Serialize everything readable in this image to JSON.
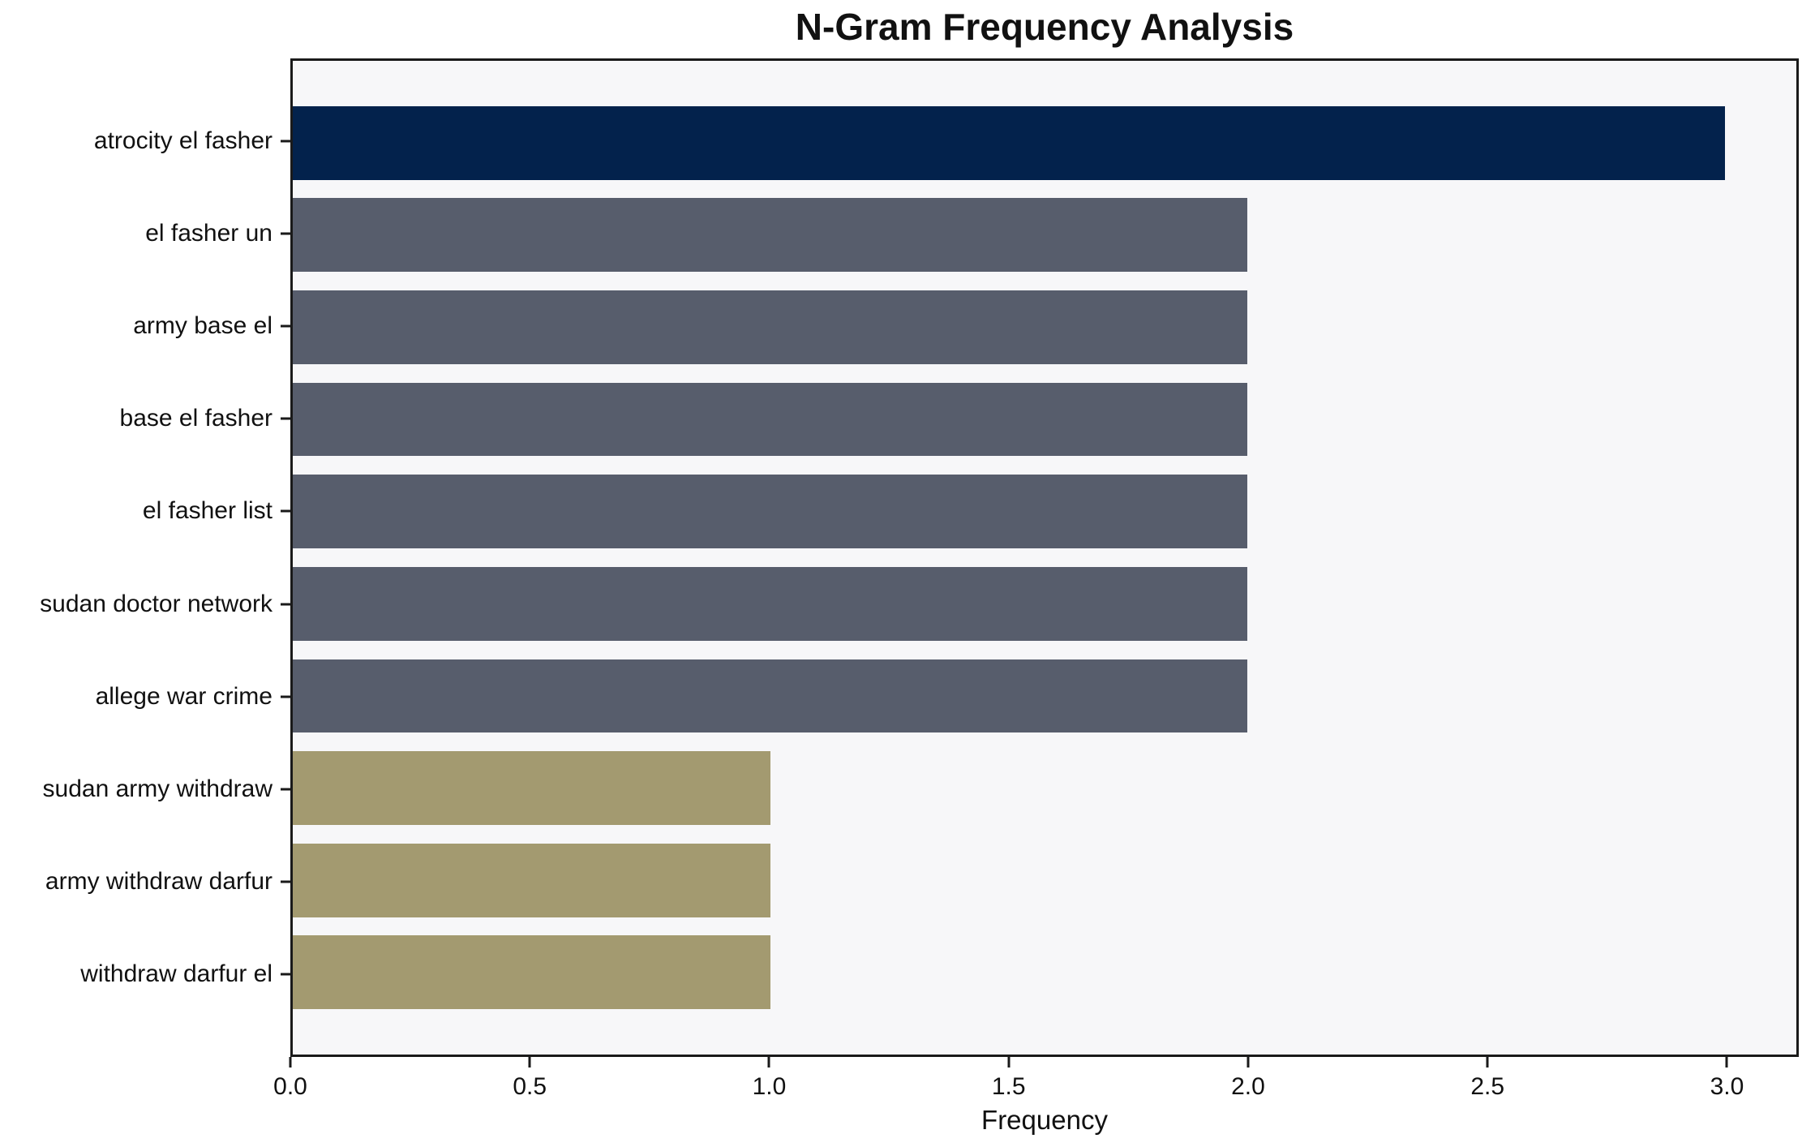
{
  "chart_data": {
    "type": "bar",
    "orientation": "horizontal",
    "title": "N-Gram Frequency Analysis",
    "xlabel": "Frequency",
    "ylabel": "",
    "categories": [
      "atrocity el fasher",
      "el fasher un",
      "army base el",
      "base el fasher",
      "el fasher list",
      "sudan doctor network",
      "allege war crime",
      "sudan army withdraw",
      "army withdraw darfur",
      "withdraw darfur el"
    ],
    "values": [
      3,
      2,
      2,
      2,
      2,
      2,
      2,
      1,
      1,
      1
    ],
    "bar_colors": [
      "#03224C",
      "#575D6C",
      "#575D6C",
      "#575D6C",
      "#575D6C",
      "#575D6C",
      "#575D6C",
      "#A39A70",
      "#A39A70",
      "#A39A70"
    ],
    "xlim": [
      0,
      3.15
    ],
    "xtick_values": [
      0.0,
      0.5,
      1.0,
      1.5,
      2.0,
      2.5,
      3.0
    ],
    "xtick_labels": [
      "0.0",
      "0.5",
      "1.0",
      "1.5",
      "2.0",
      "2.5",
      "3.0"
    ],
    "grid": false,
    "legend": "none",
    "bar_height_fraction": 0.8,
    "colors": {
      "figure_background": "#ffffff",
      "plot_background": "#f7f7f9",
      "axis": "#1a1a1a",
      "text": "#111111",
      "bar_value_3": "#03224C",
      "bar_value_2": "#575D6C",
      "bar_value_1": "#A39A70"
    }
  }
}
